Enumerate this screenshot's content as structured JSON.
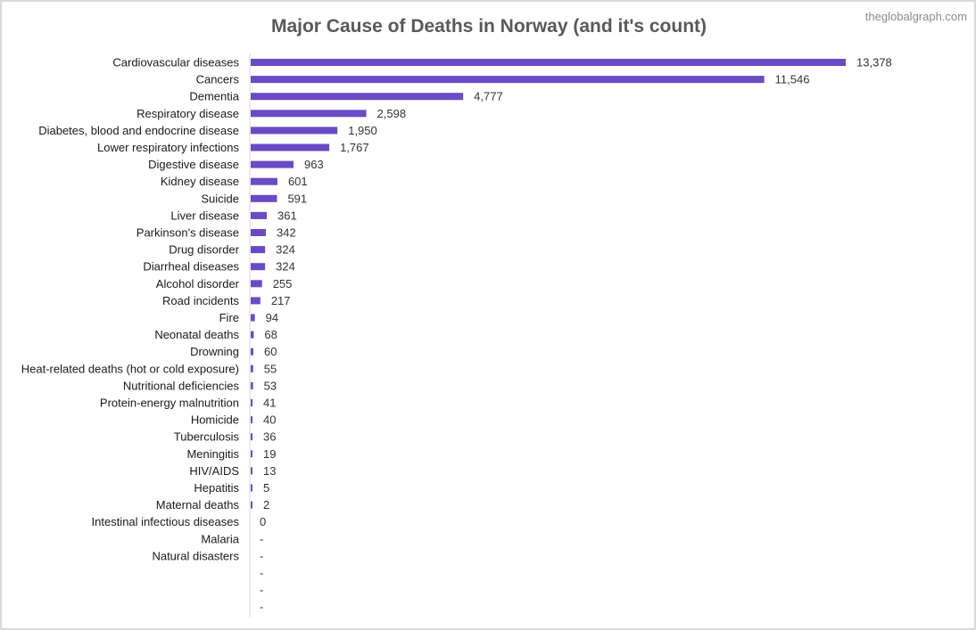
{
  "watermark": "theglobalgraph.com",
  "colors": {
    "bar": "#6a4bc4",
    "axis": "#d9d9d9",
    "title": "#595959"
  },
  "chart_data": {
    "type": "bar",
    "orientation": "horizontal",
    "title": "Major Cause of Deaths in Norway (and it's count)",
    "xlabel": "",
    "ylabel": "",
    "xlim": [
      0,
      13378
    ],
    "grid": false,
    "legend": "none",
    "categories": [
      "Cardiovascular diseases",
      "Cancers",
      "Dementia",
      "Respiratory disease",
      "Diabetes, blood and endocrine disease",
      "Lower respiratory infections",
      "Digestive disease",
      "Kidney disease",
      "Suicide",
      "Liver disease",
      "Parkinson's disease",
      "Drug disorder",
      "Diarrheal diseases",
      "Alcohol disorder",
      "Road incidents",
      "Fire",
      "Neonatal deaths",
      "Drowning",
      "Heat-related deaths (hot or cold exposure)",
      "Nutritional deficiencies",
      "Protein-energy malnutrition",
      "Homicide",
      "Tuberculosis",
      "Meningitis",
      "HIV/AIDS",
      "Hepatitis",
      "Maternal deaths",
      "Intestinal infectious diseases",
      "Malaria",
      "Natural disasters",
      "",
      "",
      ""
    ],
    "values": [
      13378,
      11546,
      4777,
      2598,
      1950,
      1767,
      963,
      601,
      591,
      361,
      342,
      324,
      324,
      255,
      217,
      94,
      68,
      60,
      55,
      53,
      41,
      40,
      36,
      19,
      13,
      5,
      2,
      0,
      null,
      null,
      null,
      null,
      null
    ],
    "data_labels": [
      "13,378",
      "11,546",
      "4,777",
      "2,598",
      "1,950",
      "1,767",
      "963",
      "601",
      "591",
      "361",
      "342",
      "324",
      "324",
      "255",
      "217",
      "94",
      "68",
      "60",
      "55",
      "53",
      "41",
      "40",
      "36",
      "19",
      "13",
      "5",
      "2",
      "0",
      "-",
      "-",
      "-",
      "-",
      "-"
    ]
  }
}
